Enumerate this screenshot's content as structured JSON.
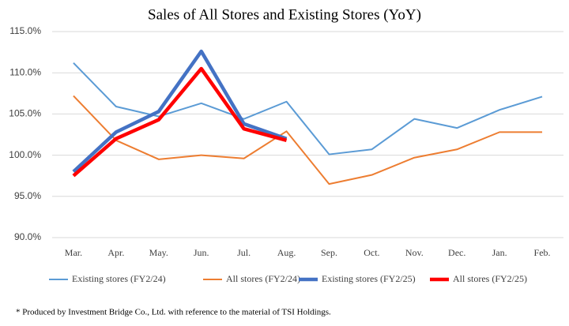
{
  "chart_data": {
    "type": "line",
    "title": "Sales of All Stores and Existing Stores (YoY)",
    "categories": [
      "Mar.",
      "Apr.",
      "May.",
      "Jun.",
      "Jul.",
      "Aug.",
      "Sep.",
      "Oct.",
      "Nov.",
      "Dec.",
      "Jan.",
      "Feb."
    ],
    "series": [
      {
        "name": "Existing stores (FY2/24)",
        "color": "#5b9bd5",
        "width": 2,
        "values": [
          111.2,
          105.9,
          104.7,
          106.3,
          104.4,
          106.5,
          100.1,
          100.7,
          104.4,
          103.3,
          105.5,
          107.1
        ]
      },
      {
        "name": "All stores (FY2/24)",
        "color": "#ed7d31",
        "width": 2,
        "values": [
          107.2,
          101.8,
          99.5,
          100.0,
          99.6,
          102.9,
          96.5,
          97.6,
          99.7,
          100.7,
          102.8,
          102.8
        ]
      },
      {
        "name": "Existing stores (FY2/25)",
        "color": "#4472c4",
        "width": 4.5,
        "values": [
          98.0,
          102.8,
          105.3,
          112.6,
          103.8,
          102.0,
          null,
          null,
          null,
          null,
          null,
          null
        ]
      },
      {
        "name": "All stores (FY2/25)",
        "color": "#ff0000",
        "width": 4.5,
        "values": [
          97.5,
          102.0,
          104.3,
          110.5,
          103.2,
          101.8,
          null,
          null,
          null,
          null,
          null,
          null
        ]
      }
    ],
    "ylim": [
      90,
      115
    ],
    "yticks": [
      {
        "value": 90,
        "label": "90.0%"
      },
      {
        "value": 95,
        "label": "95.0%"
      },
      {
        "value": 100,
        "label": "100.0%"
      },
      {
        "value": 105,
        "label": "105.0%"
      },
      {
        "value": 110,
        "label": "110.0%"
      },
      {
        "value": 115,
        "label": "115.0%"
      }
    ],
    "grid": true,
    "legend": "bottom",
    "note": "* Produced by Investment Bridge Co., Ltd. with reference to the material of TSI Holdings."
  }
}
